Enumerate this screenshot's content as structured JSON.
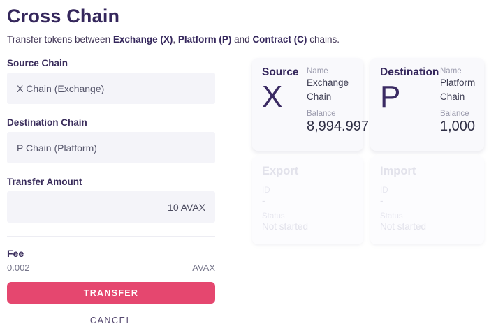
{
  "page": {
    "title": "Cross Chain",
    "subtitle": {
      "prefix": "Transfer tokens between ",
      "chain_x": "Exchange (X)",
      "sep1": ", ",
      "chain_p": "Platform (P)",
      "sep2": " and ",
      "chain_c": "Contract (C)",
      "suffix": " chains."
    }
  },
  "form": {
    "source_chain": {
      "label": "Source Chain",
      "value": "X Chain (Exchange)"
    },
    "destination_chain": {
      "label": "Destination Chain",
      "value": "P Chain (Platform)"
    },
    "transfer_amount": {
      "label": "Transfer Amount",
      "value": "10 AVAX"
    },
    "fee": {
      "label": "Fee",
      "value": "0.002",
      "unit": "AVAX"
    },
    "transfer_button": "TRANSFER",
    "cancel_button": "CANCEL"
  },
  "cards": {
    "source": {
      "title": "Source",
      "symbol": "X",
      "name_label": "Name",
      "name": "Exchange Chain",
      "balance_label": "Balance",
      "balance": "8,994.997"
    },
    "destination": {
      "title": "Destination",
      "symbol": "P",
      "name_label": "Name",
      "name": "Platform Chain",
      "balance_label": "Balance",
      "balance": "1,000"
    },
    "export": {
      "title": "Export",
      "id_label": "ID",
      "id_value": "-",
      "status_label": "Status",
      "status_value": "Not started"
    },
    "import": {
      "title": "Import",
      "id_label": "ID",
      "id_value": "-",
      "status_label": "Status",
      "status_value": "Not started"
    }
  },
  "colors": {
    "accent": "#e5476f",
    "heading": "#35275c",
    "input_background": "#f4f4f9"
  }
}
